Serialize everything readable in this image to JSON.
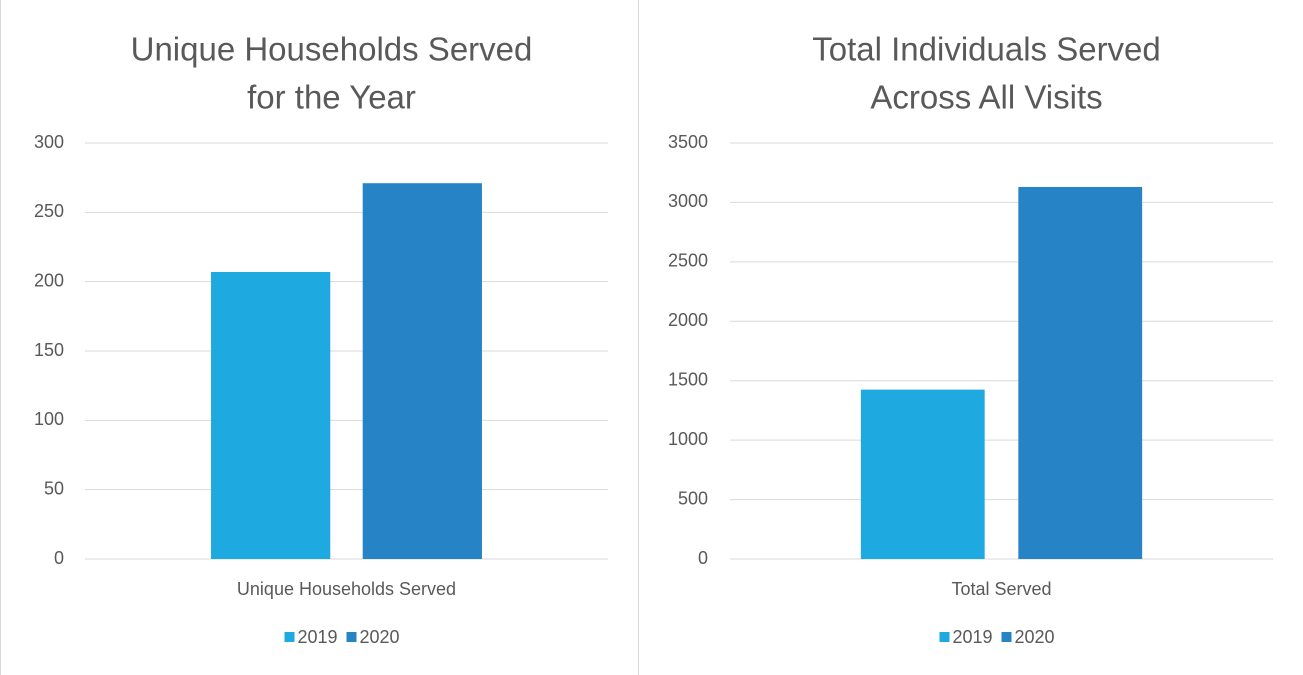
{
  "chart_data": [
    {
      "type": "bar",
      "title": [
        "Unique Households Served",
        "for the Year"
      ],
      "categories": [
        "Unique Households Served"
      ],
      "series": [
        {
          "name": "2019",
          "color": "#1ea9e1",
          "values": [
            207
          ]
        },
        {
          "name": "2020",
          "color": "#2683c6",
          "values": [
            271
          ]
        }
      ],
      "ylim": [
        0,
        300
      ],
      "yticks": [
        0,
        50,
        100,
        150,
        200,
        250,
        300
      ],
      "grid": true,
      "legend": "bottom"
    },
    {
      "type": "bar",
      "title": [
        "Total Individuals Served",
        "Across All Visits"
      ],
      "categories": [
        "Total Served"
      ],
      "series": [
        {
          "name": "2019",
          "color": "#1ea9e1",
          "values": [
            1425
          ]
        },
        {
          "name": "2020",
          "color": "#2683c6",
          "values": [
            3130
          ]
        }
      ],
      "ylim": [
        0,
        3500
      ],
      "yticks": [
        0,
        500,
        1000,
        1500,
        2000,
        2500,
        3000,
        3500
      ],
      "grid": true,
      "legend": "bottom"
    }
  ]
}
